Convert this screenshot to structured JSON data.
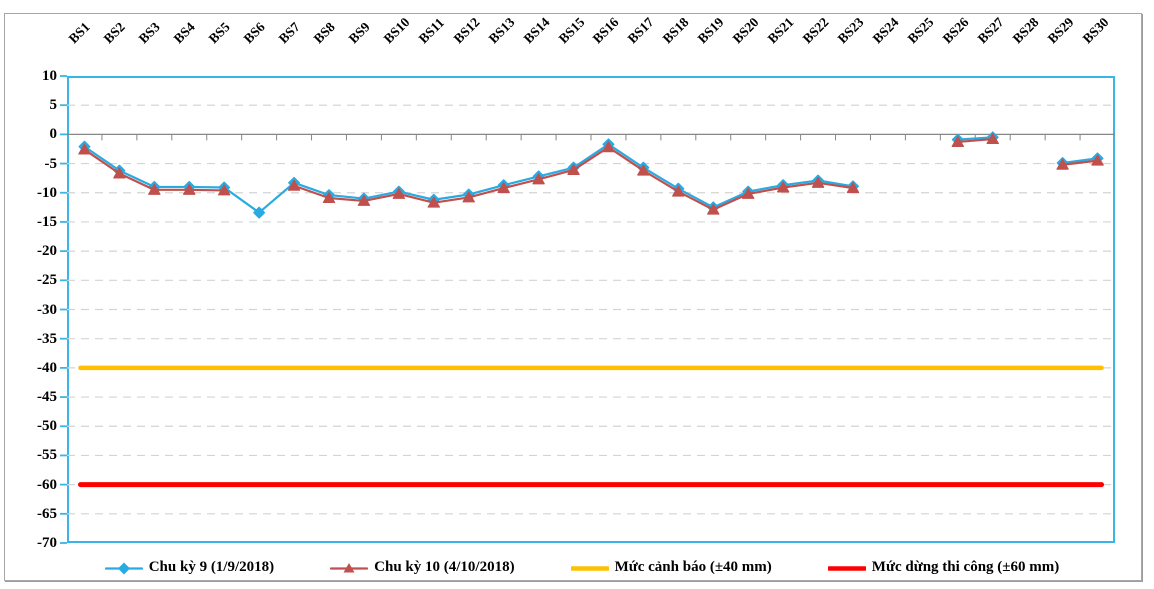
{
  "chart_data": {
    "type": "line",
    "title": "",
    "xlabel": "",
    "ylabel": "",
    "categories": [
      "BS1",
      "BS2",
      "BS3",
      "BS4",
      "BS5",
      "BS6",
      "BS7",
      "BS8",
      "BS9",
      "BS10",
      "BS11",
      "BS12",
      "BS13",
      "BS14",
      "BS15",
      "BS16",
      "BS17",
      "BS18",
      "BS19",
      "BS20",
      "BS21",
      "BS22",
      "BS23",
      "BS24",
      "BS25",
      "BS26",
      "BS27",
      "BS28",
      "BS29",
      "BS30"
    ],
    "series": [
      {
        "name": "Chu kỳ 9 (1/9/2018)",
        "color": "#29abe2",
        "marker": "diamond",
        "values": [
          -2.1,
          -6.2,
          -9.0,
          -9.0,
          -9.1,
          -13.4,
          -8.3,
          -10.4,
          -11.0,
          -9.8,
          -11.2,
          -10.3,
          -8.7,
          -7.2,
          -5.7,
          -1.7,
          -5.7,
          -9.3,
          -12.5,
          -9.8,
          -8.7,
          -7.9,
          -8.9,
          null,
          null,
          -0.9,
          -0.5,
          null,
          -4.9,
          -4.1
        ]
      },
      {
        "name": "Chu kỳ 10 (4/10/2018)",
        "color": "#c0504d",
        "marker": "triangle",
        "values": [
          -2.6,
          -6.7,
          -9.5,
          -9.5,
          -9.6,
          null,
          -8.8,
          -10.9,
          -11.4,
          -10.2,
          -11.7,
          -10.8,
          -9.2,
          -7.7,
          -6.1,
          -2.2,
          -6.2,
          -9.8,
          -12.9,
          -10.2,
          -9.1,
          -8.3,
          -9.2,
          null,
          null,
          -1.3,
          -0.8,
          null,
          -5.2,
          -4.5
        ]
      },
      {
        "name": "Mức cảnh báo (±40 mm)",
        "color": "#ffc000",
        "marker": "thick-line",
        "constant": -40
      },
      {
        "name": "Mức dừng thi công (±60 mm)",
        "color": "#ff0000",
        "marker": "thick-line",
        "constant": -60
      }
    ],
    "ylim": [
      -70,
      10
    ],
    "ytick_step": 5,
    "ytick_labels": [
      "10",
      "5",
      "0",
      "-5",
      "-10",
      "-15",
      "-20",
      "-25",
      "-30",
      "-35",
      "-40",
      "-45",
      "-50",
      "-55",
      "-60",
      "-65",
      "-70"
    ],
    "grid": "horizontal-dashed",
    "gridline_color": "#d4d4d4",
    "zero_line_color": "#868686",
    "plot_border_color": "#3ab5e9",
    "legend_position": "bottom"
  }
}
